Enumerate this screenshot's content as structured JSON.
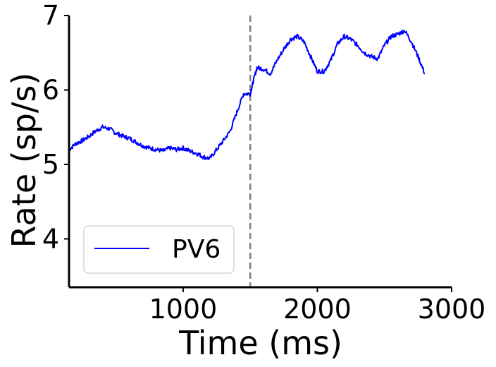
{
  "chart_data": {
    "type": "line",
    "title": "",
    "xlabel": "Time (ms)",
    "ylabel": "Rate (sp/s)",
    "xlim": [
      150,
      3000
    ],
    "ylim": [
      3.35,
      7.0
    ],
    "xticks": [
      1000,
      2000,
      3000
    ],
    "xtick_labels": [
      "1000",
      "2000",
      "3000"
    ],
    "yticks": [
      4,
      5,
      6,
      7
    ],
    "ytick_labels": [
      "4",
      "5",
      "6",
      "7"
    ],
    "grid": false,
    "legend_position": "lower-left",
    "vline": {
      "x": 1500,
      "style": "dashed",
      "color": "#808080"
    },
    "series": [
      {
        "name": "PV6",
        "color": "#0000ff",
        "x": [
          150,
          200,
          250,
          300,
          350,
          400,
          450,
          500,
          550,
          600,
          650,
          700,
          750,
          800,
          850,
          900,
          950,
          1000,
          1050,
          1100,
          1150,
          1200,
          1250,
          1300,
          1350,
          1400,
          1450,
          1500,
          1520,
          1550,
          1600,
          1650,
          1700,
          1750,
          1800,
          1850,
          1900,
          1950,
          2000,
          2050,
          2100,
          2150,
          2200,
          2250,
          2300,
          2350,
          2400,
          2450,
          2500,
          2550,
          2600,
          2650,
          2700,
          2750,
          2800
        ],
        "y": [
          5.2,
          5.28,
          5.32,
          5.38,
          5.45,
          5.5,
          5.48,
          5.42,
          5.38,
          5.35,
          5.3,
          5.25,
          5.22,
          5.2,
          5.18,
          5.22,
          5.2,
          5.22,
          5.18,
          5.15,
          5.1,
          5.08,
          5.2,
          5.32,
          5.45,
          5.7,
          5.95,
          5.95,
          6.1,
          6.3,
          6.28,
          6.22,
          6.4,
          6.55,
          6.68,
          6.72,
          6.65,
          6.45,
          6.25,
          6.25,
          6.4,
          6.62,
          6.72,
          6.68,
          6.6,
          6.5,
          6.45,
          6.42,
          6.6,
          6.72,
          6.75,
          6.8,
          6.65,
          6.45,
          6.22
        ]
      }
    ]
  }
}
